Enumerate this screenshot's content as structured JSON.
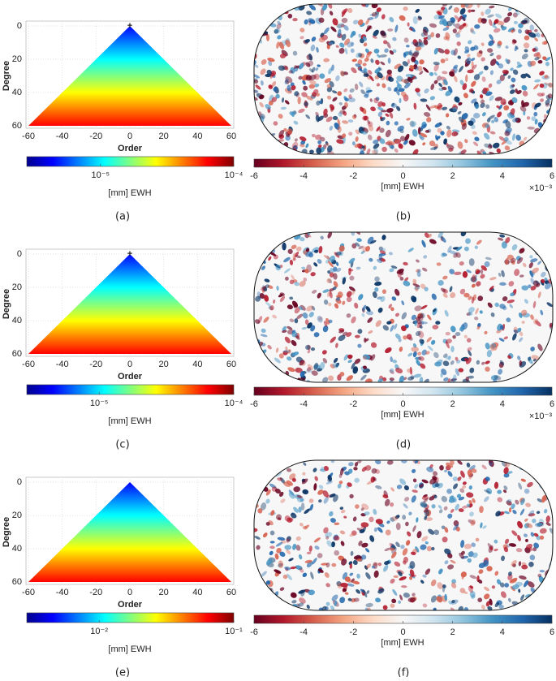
{
  "chart_data": [
    {
      "type": "heatmap",
      "panel_label": "(a)",
      "xlabel": "Order",
      "ylabel": "Degree",
      "xlim": [
        -60,
        60
      ],
      "ylim": [
        60,
        0
      ],
      "xticks": [
        -60,
        -40,
        -20,
        0,
        20,
        40,
        60
      ],
      "yticks": [
        0,
        20,
        40,
        60
      ],
      "grid": true,
      "apex_marker": true,
      "colormap": "jet",
      "colorbar": {
        "label": "[mm] EWH",
        "scale": "log",
        "lim": [
          2.8e-06,
          0.0001
        ],
        "ticks": [
          {
            "value": 1e-05,
            "label": "10⁻⁵"
          },
          {
            "value": 0.0001,
            "label": "10⁻⁴"
          }
        ]
      }
    },
    {
      "type": "map",
      "panel_label": "(b)",
      "colormap": "diverging",
      "colorbar": {
        "label": "[mm] EWH",
        "lim": [
          -6,
          6
        ],
        "ticks": [
          -6,
          -4,
          -2,
          0,
          2,
          4,
          6
        ],
        "multiplier": "×10⁻³"
      }
    },
    {
      "type": "heatmap",
      "panel_label": "(c)",
      "xlabel": "Order",
      "ylabel": "Degree",
      "xlim": [
        -60,
        60
      ],
      "ylim": [
        60,
        0
      ],
      "xticks": [
        -60,
        -40,
        -20,
        0,
        20,
        40,
        60
      ],
      "yticks": [
        0,
        20,
        40,
        60
      ],
      "grid": true,
      "apex_marker": true,
      "colormap": "jet",
      "colorbar": {
        "label": "[mm] EWH",
        "scale": "log",
        "lim": [
          2.9e-06,
          0.0001
        ],
        "ticks": [
          {
            "value": 1e-05,
            "label": "10⁻⁵"
          },
          {
            "value": 0.0001,
            "label": "10⁻⁴"
          }
        ]
      }
    },
    {
      "type": "map",
      "panel_label": "(d)",
      "colormap": "diverging",
      "colorbar": {
        "label": "[mm] EWH",
        "lim": [
          -6,
          6
        ],
        "ticks": [
          -6,
          -4,
          -2,
          0,
          2,
          4,
          6
        ],
        "multiplier": "×10⁻³"
      }
    },
    {
      "type": "heatmap",
      "panel_label": "(e)",
      "xlabel": "Order",
      "ylabel": "Degree",
      "xlim": [
        -60,
        60
      ],
      "ylim": [
        60,
        0
      ],
      "xticks": [
        -60,
        -40,
        -20,
        0,
        20,
        40,
        60
      ],
      "yticks": [
        0,
        20,
        40,
        60
      ],
      "grid": true,
      "apex_marker": false,
      "colormap": "jet",
      "colorbar": {
        "label": "[mm] EWH",
        "scale": "log",
        "lim": [
          0.0029,
          0.1
        ],
        "ticks": [
          {
            "value": 0.01,
            "label": "10⁻²"
          },
          {
            "value": 0.1,
            "label": "10⁻¹"
          }
        ]
      }
    },
    {
      "type": "map",
      "panel_label": "(f)",
      "colormap": "diverging",
      "colorbar": {
        "label": "[mm] EWH",
        "lim": [
          -6,
          6
        ],
        "ticks": [
          -6,
          -4,
          -2,
          0,
          2,
          4,
          6
        ]
      }
    }
  ]
}
